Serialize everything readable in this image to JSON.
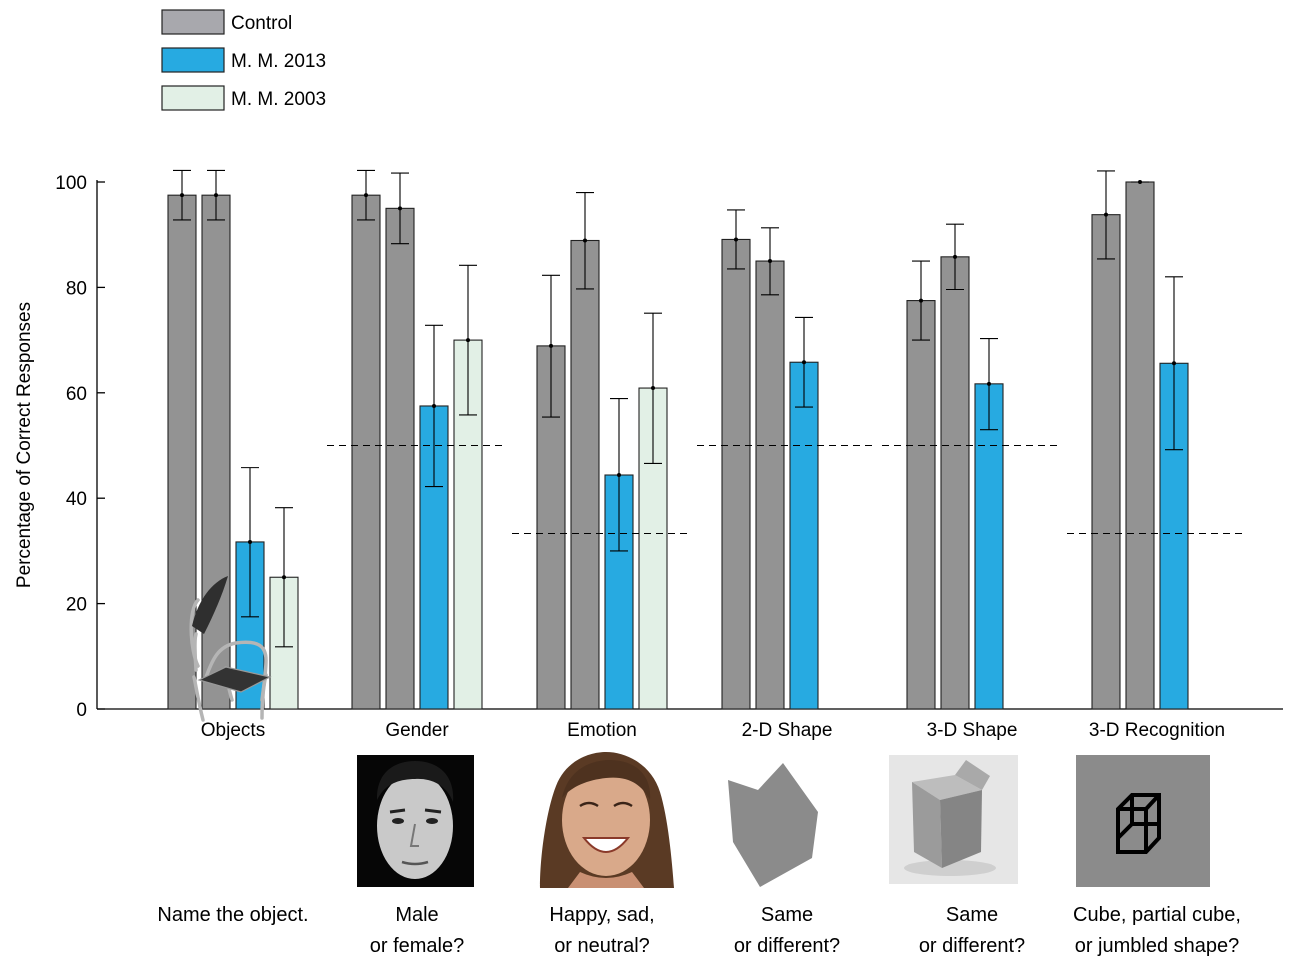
{
  "chart_data": {
    "type": "bar",
    "ylabel": "Percentage of Correct Responses",
    "ylim": [
      0,
      100
    ],
    "yticks": [
      0,
      20,
      40,
      60,
      80,
      100
    ],
    "legend": {
      "placement": "top-left",
      "items": [
        {
          "label": "Control",
          "color": "#a8a8ad"
        },
        {
          "label": "M. M. 2013",
          "color": "#27aae1"
        },
        {
          "label": "M. M. 2003",
          "color": "#e2f0e6"
        }
      ]
    },
    "colors": {
      "control": "#939393",
      "mm2013": "#27aae1",
      "mm2003": "#e2f0e6",
      "border": "#222222"
    },
    "groups": [
      {
        "label": "Objects",
        "caption": [
          "Name the object."
        ],
        "icon": "chair-image",
        "chance": null,
        "bars": [
          {
            "series": "control",
            "value": 97.5,
            "err_low": 92.8,
            "err_high": 102.2
          },
          {
            "series": "control",
            "value": 97.5,
            "err_low": 92.8,
            "err_high": 102.2
          },
          {
            "series": "mm2013",
            "value": 31.7,
            "err_low": 17.5,
            "err_high": 45.8
          },
          {
            "series": "mm2003",
            "value": 25.0,
            "err_low": 11.8,
            "err_high": 38.2
          }
        ]
      },
      {
        "label": "Gender",
        "caption": [
          "Male",
          "or female?"
        ],
        "icon": "male-face-image",
        "chance": 50,
        "bars": [
          {
            "series": "control",
            "value": 97.5,
            "err_low": 92.8,
            "err_high": 102.2
          },
          {
            "series": "control",
            "value": 95.0,
            "err_low": 88.3,
            "err_high": 101.7
          },
          {
            "series": "mm2013",
            "value": 57.5,
            "err_low": 42.2,
            "err_high": 72.8
          },
          {
            "series": "mm2003",
            "value": 70.0,
            "err_low": 55.8,
            "err_high": 84.2
          }
        ]
      },
      {
        "label": "Emotion",
        "caption": [
          "Happy, sad,",
          "or neutral?"
        ],
        "icon": "smiling-face-image",
        "chance": 33.3,
        "bars": [
          {
            "series": "control",
            "value": 68.9,
            "err_low": 55.4,
            "err_high": 82.3
          },
          {
            "series": "control",
            "value": 88.9,
            "err_low": 79.7,
            "err_high": 98.0
          },
          {
            "series": "mm2013",
            "value": 44.4,
            "err_low": 30.0,
            "err_high": 58.9
          },
          {
            "series": "mm2003",
            "value": 60.9,
            "err_low": 46.6,
            "err_high": 75.1
          }
        ]
      },
      {
        "label": "2-D Shape",
        "caption": [
          "Same",
          "or different?"
        ],
        "icon": "2d-shape-image",
        "chance": 50,
        "bars": [
          {
            "series": "control",
            "value": 89.1,
            "err_low": 83.5,
            "err_high": 94.7
          },
          {
            "series": "control",
            "value": 85.0,
            "err_low": 78.6,
            "err_high": 91.3
          },
          {
            "series": "mm2013",
            "value": 65.8,
            "err_low": 57.3,
            "err_high": 74.3
          }
        ]
      },
      {
        "label": "3-D Shape",
        "caption": [
          "Same",
          "or different?"
        ],
        "icon": "3d-shape-image",
        "chance": 50,
        "bars": [
          {
            "series": "control",
            "value": 77.5,
            "err_low": 70.0,
            "err_high": 85.0
          },
          {
            "series": "control",
            "value": 85.8,
            "err_low": 79.6,
            "err_high": 92.0
          },
          {
            "series": "mm2013",
            "value": 61.7,
            "err_low": 53.0,
            "err_high": 70.3
          }
        ]
      },
      {
        "label": "3-D Recognition",
        "caption": [
          "Cube, partial cube,",
          "or jumbled shape?"
        ],
        "icon": "cube-drawing-image",
        "chance": 33.3,
        "bars": [
          {
            "series": "control",
            "value": 93.8,
            "err_low": 85.4,
            "err_high": 102.1
          },
          {
            "series": "control",
            "value": 100.0,
            "err_low": 100.0,
            "err_high": 100.0
          },
          {
            "series": "mm2013",
            "value": 65.6,
            "err_low": 49.2,
            "err_high": 82.0
          }
        ]
      }
    ]
  }
}
